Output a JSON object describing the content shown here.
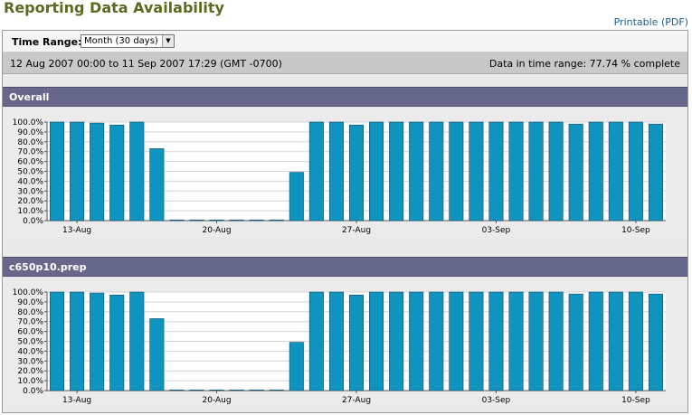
{
  "page": {
    "title": "Reporting Data Availability",
    "printable_label": "Printable (PDF)"
  },
  "controls": {
    "time_range_label": "Time Range:",
    "time_range_value": "Month (30 days)"
  },
  "info": {
    "date_range": "12 Aug 2007 00:00 to 11 Sep 2007 17:29 (GMT -0700)",
    "completeness": "Data in time range: 77.74 % complete"
  },
  "colors": {
    "bar": "#0f94bf",
    "bar_stroke": "#1c4a66",
    "header": "#67678c"
  },
  "chart_data": [
    {
      "type": "bar",
      "title": "Overall",
      "ylim": [
        0,
        100
      ],
      "y_ticks": [
        "0.0%",
        "10.0%",
        "20.0%",
        "30.0%",
        "40.0%",
        "50.0%",
        "60.0%",
        "70.0%",
        "80.0%",
        "90.0%",
        "100.0%"
      ],
      "x_ticks": [
        {
          "label": "13-Aug",
          "index": 1
        },
        {
          "label": "20-Aug",
          "index": 8
        },
        {
          "label": "27-Aug",
          "index": 15
        },
        {
          "label": "03-Sep",
          "index": 22
        },
        {
          "label": "10-Sep",
          "index": 29
        }
      ],
      "values": [
        100,
        100,
        99,
        97,
        100,
        73,
        0,
        0,
        0,
        0,
        0,
        0,
        49,
        100,
        100,
        97,
        100,
        100,
        100,
        100,
        100,
        100,
        100,
        100,
        100,
        100,
        98,
        100,
        100,
        100,
        98
      ],
      "grid": true
    },
    {
      "type": "bar",
      "title": "c650p10.prep",
      "ylim": [
        0,
        100
      ],
      "y_ticks": [
        "0.0%",
        "10.0%",
        "20.0%",
        "30.0%",
        "40.0%",
        "50.0%",
        "60.0%",
        "70.0%",
        "80.0%",
        "90.0%",
        "100.0%"
      ],
      "x_ticks": [
        {
          "label": "13-Aug",
          "index": 1
        },
        {
          "label": "20-Aug",
          "index": 8
        },
        {
          "label": "27-Aug",
          "index": 15
        },
        {
          "label": "03-Sep",
          "index": 22
        },
        {
          "label": "10-Sep",
          "index": 29
        }
      ],
      "values": [
        100,
        100,
        99,
        97,
        100,
        73,
        0,
        0,
        0,
        0,
        0,
        0,
        49,
        100,
        100,
        97,
        100,
        100,
        100,
        100,
        100,
        100,
        100,
        100,
        100,
        100,
        98,
        100,
        100,
        100,
        98
      ],
      "grid": true
    }
  ]
}
